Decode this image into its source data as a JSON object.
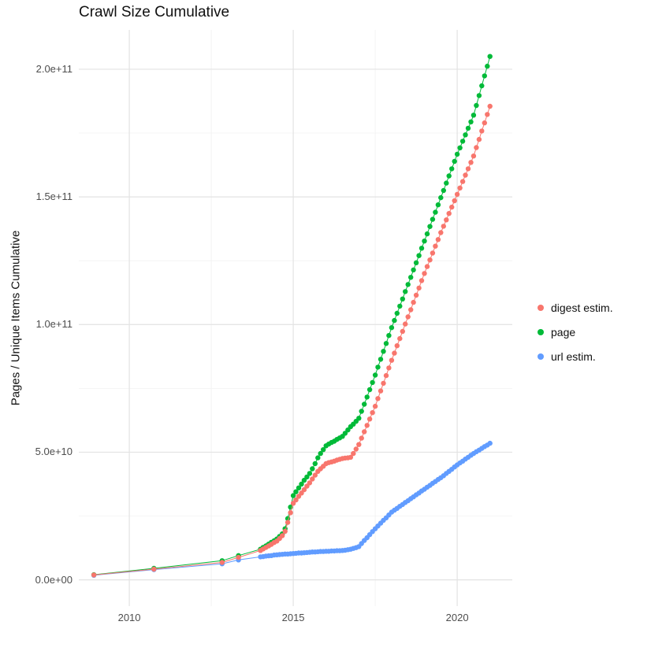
{
  "title": "Crawl Size Cumulative",
  "y_axis_label": "Pages / Unique Items Cumulative",
  "chart_data": {
    "type": "scatter",
    "mode": "points+lines",
    "title": "Crawl Size Cumulative",
    "xlabel": "",
    "ylabel": "Pages / Unique Items Cumulative",
    "y_unit_note": "y values stored in billions (1e9); axis shows scientific notation",
    "xlim": [
      2008.46,
      2021.68
    ],
    "ylim": [
      -10.3,
      215.4
    ],
    "grid": true,
    "legend_position": "right",
    "background_color": "#ffffff",
    "grid_major_color": "#e3e3e3",
    "grid_minor_color": "#f2f2f2",
    "x_ticks": [
      {
        "v": 2010,
        "label": "2010"
      },
      {
        "v": 2015,
        "label": "2015"
      },
      {
        "v": 2020,
        "label": "2020"
      }
    ],
    "x_minor_ticks": [
      2012.5,
      2017.5
    ],
    "y_ticks": [
      {
        "v": 0,
        "label": "0.0e+00"
      },
      {
        "v": 50,
        "label": "5.0e+10"
      },
      {
        "v": 100,
        "label": "1.0e+11"
      },
      {
        "v": 150,
        "label": "1.5e+11"
      },
      {
        "v": 200,
        "label": "2.0e+11"
      }
    ],
    "y_minor_ticks": [
      25,
      75,
      125,
      175
    ],
    "series": [
      {
        "name": "digest estim.",
        "color": "#F8766D",
        "points": [
          [
            2008.92,
            1.9
          ],
          [
            2010.75,
            4.2
          ],
          [
            2012.83,
            6.8
          ],
          [
            2013.33,
            8.8
          ],
          [
            2014.0,
            11.5
          ],
          [
            2014.083,
            12.1
          ],
          [
            2014.167,
            12.7
          ],
          [
            2014.25,
            13.3
          ],
          [
            2014.333,
            13.9
          ],
          [
            2014.417,
            14.6
          ],
          [
            2014.5,
            15.2
          ],
          [
            2014.583,
            16.2
          ],
          [
            2014.667,
            17.3
          ],
          [
            2014.75,
            19.0
          ],
          [
            2014.833,
            22.5
          ],
          [
            2014.917,
            26.3
          ],
          [
            2015.0,
            30.0
          ],
          [
            2015.083,
            31.3
          ],
          [
            2015.167,
            32.7
          ],
          [
            2015.25,
            34.0
          ],
          [
            2015.333,
            35.3
          ],
          [
            2015.417,
            36.7
          ],
          [
            2015.5,
            38.0
          ],
          [
            2015.583,
            39.5
          ],
          [
            2015.667,
            41.0
          ],
          [
            2015.75,
            42.5
          ],
          [
            2015.833,
            43.5
          ],
          [
            2015.917,
            44.5
          ],
          [
            2016.0,
            45.5
          ],
          [
            2016.083,
            45.9
          ],
          [
            2016.167,
            46.2
          ],
          [
            2016.25,
            46.5
          ],
          [
            2016.333,
            46.9
          ],
          [
            2016.417,
            47.2
          ],
          [
            2016.5,
            47.5
          ],
          [
            2016.583,
            47.7
          ],
          [
            2016.667,
            47.8
          ],
          [
            2016.75,
            48.0
          ],
          [
            2016.833,
            49.5
          ],
          [
            2016.917,
            51.2
          ],
          [
            2017.0,
            53.0
          ],
          [
            2017.083,
            55.5
          ],
          [
            2017.167,
            58.0
          ],
          [
            2017.25,
            60.5
          ],
          [
            2017.333,
            63.0
          ],
          [
            2017.417,
            65.5
          ],
          [
            2017.5,
            68.0
          ],
          [
            2017.583,
            71.0
          ],
          [
            2017.667,
            74.0
          ],
          [
            2017.75,
            77.0
          ],
          [
            2017.833,
            80.0
          ],
          [
            2017.917,
            83.0
          ],
          [
            2018.0,
            86.0
          ],
          [
            2018.083,
            88.8
          ],
          [
            2018.167,
            91.7
          ],
          [
            2018.25,
            94.5
          ],
          [
            2018.333,
            97.3
          ],
          [
            2018.417,
            100.2
          ],
          [
            2018.5,
            103.0
          ],
          [
            2018.583,
            105.8
          ],
          [
            2018.667,
            108.7
          ],
          [
            2018.75,
            111.5
          ],
          [
            2018.833,
            114.3
          ],
          [
            2018.917,
            117.2
          ],
          [
            2019.0,
            120.0
          ],
          [
            2019.083,
            122.7
          ],
          [
            2019.167,
            125.3
          ],
          [
            2019.25,
            128.0
          ],
          [
            2019.333,
            130.7
          ],
          [
            2019.417,
            133.3
          ],
          [
            2019.5,
            136.0
          ],
          [
            2019.583,
            138.5
          ],
          [
            2019.667,
            141.0
          ],
          [
            2019.75,
            143.5
          ],
          [
            2019.833,
            146.0
          ],
          [
            2019.917,
            148.5
          ],
          [
            2020.0,
            151.0
          ],
          [
            2020.083,
            153.5
          ],
          [
            2020.167,
            156.0
          ],
          [
            2020.25,
            158.5
          ],
          [
            2020.333,
            161.0
          ],
          [
            2020.417,
            163.5
          ],
          [
            2020.5,
            166.0
          ],
          [
            2020.583,
            169.3
          ],
          [
            2020.667,
            172.5
          ],
          [
            2020.75,
            175.8
          ],
          [
            2020.833,
            179.0
          ],
          [
            2020.917,
            182.3
          ],
          [
            2021.0,
            185.5
          ]
        ]
      },
      {
        "name": "page",
        "color": "#00BA38",
        "points": [
          [
            2008.92,
            2.0
          ],
          [
            2010.75,
            4.5
          ],
          [
            2012.83,
            7.5
          ],
          [
            2013.33,
            9.5
          ],
          [
            2014.0,
            12.0
          ],
          [
            2014.083,
            12.7
          ],
          [
            2014.167,
            13.3
          ],
          [
            2014.25,
            14.0
          ],
          [
            2014.333,
            14.7
          ],
          [
            2014.417,
            15.3
          ],
          [
            2014.5,
            16.0
          ],
          [
            2014.583,
            17.0
          ],
          [
            2014.667,
            18.0
          ],
          [
            2014.75,
            20.0
          ],
          [
            2014.833,
            24.0
          ],
          [
            2014.917,
            28.5
          ],
          [
            2015.0,
            33.0
          ],
          [
            2015.083,
            34.5
          ],
          [
            2015.167,
            36.0
          ],
          [
            2015.25,
            37.5
          ],
          [
            2015.333,
            39.0
          ],
          [
            2015.417,
            40.3
          ],
          [
            2015.5,
            41.7
          ],
          [
            2015.583,
            43.5
          ],
          [
            2015.667,
            45.5
          ],
          [
            2015.75,
            47.8
          ],
          [
            2015.833,
            49.5
          ],
          [
            2015.917,
            51.0
          ],
          [
            2016.0,
            52.5
          ],
          [
            2016.083,
            53.2
          ],
          [
            2016.167,
            53.8
          ],
          [
            2016.25,
            54.3
          ],
          [
            2016.333,
            55.0
          ],
          [
            2016.417,
            55.6
          ],
          [
            2016.5,
            56.2
          ],
          [
            2016.583,
            57.4
          ],
          [
            2016.667,
            58.7
          ],
          [
            2016.75,
            60.0
          ],
          [
            2016.833,
            61.0
          ],
          [
            2016.917,
            62.1
          ],
          [
            2017.0,
            63.3
          ],
          [
            2017.083,
            66.0
          ],
          [
            2017.167,
            68.8
          ],
          [
            2017.25,
            71.6
          ],
          [
            2017.333,
            74.5
          ],
          [
            2017.417,
            77.3
          ],
          [
            2017.5,
            80.2
          ],
          [
            2017.583,
            83.3
          ],
          [
            2017.667,
            86.4
          ],
          [
            2017.75,
            89.5
          ],
          [
            2017.833,
            92.6
          ],
          [
            2017.917,
            95.7
          ],
          [
            2018.0,
            98.8
          ],
          [
            2018.083,
            101.6
          ],
          [
            2018.167,
            104.4
          ],
          [
            2018.25,
            107.2
          ],
          [
            2018.333,
            110.0
          ],
          [
            2018.417,
            112.9
          ],
          [
            2018.5,
            115.7
          ],
          [
            2018.583,
            118.5
          ],
          [
            2018.667,
            121.4
          ],
          [
            2018.75,
            124.2
          ],
          [
            2018.833,
            127.0
          ],
          [
            2018.917,
            129.9
          ],
          [
            2019.0,
            132.7
          ],
          [
            2019.083,
            135.5
          ],
          [
            2019.167,
            138.4
          ],
          [
            2019.25,
            141.2
          ],
          [
            2019.333,
            144.0
          ],
          [
            2019.417,
            146.9
          ],
          [
            2019.5,
            149.7
          ],
          [
            2019.583,
            152.5
          ],
          [
            2019.667,
            155.4
          ],
          [
            2019.75,
            158.2
          ],
          [
            2019.833,
            161.0
          ],
          [
            2019.917,
            163.9
          ],
          [
            2020.0,
            166.7
          ],
          [
            2020.083,
            169.2
          ],
          [
            2020.167,
            171.8
          ],
          [
            2020.25,
            174.3
          ],
          [
            2020.333,
            176.9
          ],
          [
            2020.417,
            179.4
          ],
          [
            2020.5,
            182.0
          ],
          [
            2020.583,
            185.8
          ],
          [
            2020.667,
            189.7
          ],
          [
            2020.75,
            193.5
          ],
          [
            2020.833,
            197.4
          ],
          [
            2020.917,
            201.2
          ],
          [
            2021.0,
            205.0
          ]
        ]
      },
      {
        "name": "url estim.",
        "color": "#619CFF",
        "points": [
          [
            2008.92,
            1.8
          ],
          [
            2010.75,
            4.0
          ],
          [
            2012.83,
            6.3
          ],
          [
            2013.33,
            7.8
          ],
          [
            2014.0,
            9.0
          ],
          [
            2014.083,
            9.1
          ],
          [
            2014.167,
            9.3
          ],
          [
            2014.25,
            9.4
          ],
          [
            2014.333,
            9.5
          ],
          [
            2014.417,
            9.7
          ],
          [
            2014.5,
            9.8
          ],
          [
            2014.583,
            9.9
          ],
          [
            2014.667,
            10.0
          ],
          [
            2014.75,
            10.1
          ],
          [
            2014.833,
            10.1
          ],
          [
            2014.917,
            10.2
          ],
          [
            2015.0,
            10.3
          ],
          [
            2015.083,
            10.4
          ],
          [
            2015.167,
            10.5
          ],
          [
            2015.25,
            10.5
          ],
          [
            2015.333,
            10.6
          ],
          [
            2015.417,
            10.7
          ],
          [
            2015.5,
            10.8
          ],
          [
            2015.583,
            10.9
          ],
          [
            2015.667,
            10.9
          ],
          [
            2015.75,
            11.0
          ],
          [
            2015.833,
            11.1
          ],
          [
            2015.917,
            11.1
          ],
          [
            2016.0,
            11.2
          ],
          [
            2016.083,
            11.2
          ],
          [
            2016.167,
            11.3
          ],
          [
            2016.25,
            11.3
          ],
          [
            2016.333,
            11.4
          ],
          [
            2016.417,
            11.4
          ],
          [
            2016.5,
            11.5
          ],
          [
            2016.583,
            11.6
          ],
          [
            2016.667,
            11.8
          ],
          [
            2016.75,
            12.0
          ],
          [
            2016.833,
            12.3
          ],
          [
            2016.917,
            12.6
          ],
          [
            2017.0,
            13.0
          ],
          [
            2017.083,
            14.2
          ],
          [
            2017.167,
            15.4
          ],
          [
            2017.25,
            16.5
          ],
          [
            2017.333,
            17.7
          ],
          [
            2017.417,
            18.9
          ],
          [
            2017.5,
            20.0
          ],
          [
            2017.583,
            21.1
          ],
          [
            2017.667,
            22.2
          ],
          [
            2017.75,
            23.3
          ],
          [
            2017.833,
            24.3
          ],
          [
            2017.917,
            25.4
          ],
          [
            2018.0,
            26.5
          ],
          [
            2018.083,
            27.3
          ],
          [
            2018.167,
            28.0
          ],
          [
            2018.25,
            28.8
          ],
          [
            2018.333,
            29.5
          ],
          [
            2018.417,
            30.3
          ],
          [
            2018.5,
            31.0
          ],
          [
            2018.583,
            31.8
          ],
          [
            2018.667,
            32.5
          ],
          [
            2018.75,
            33.3
          ],
          [
            2018.833,
            34.0
          ],
          [
            2018.917,
            34.8
          ],
          [
            2019.0,
            35.5
          ],
          [
            2019.083,
            36.3
          ],
          [
            2019.167,
            37.0
          ],
          [
            2019.25,
            37.8
          ],
          [
            2019.333,
            38.5
          ],
          [
            2019.417,
            39.3
          ],
          [
            2019.5,
            40.0
          ],
          [
            2019.583,
            40.8
          ],
          [
            2019.667,
            41.7
          ],
          [
            2019.75,
            42.5
          ],
          [
            2019.833,
            43.3
          ],
          [
            2019.917,
            44.2
          ],
          [
            2020.0,
            45.0
          ],
          [
            2020.083,
            45.8
          ],
          [
            2020.167,
            46.5
          ],
          [
            2020.25,
            47.3
          ],
          [
            2020.333,
            48.0
          ],
          [
            2020.417,
            48.8
          ],
          [
            2020.5,
            49.5
          ],
          [
            2020.583,
            50.2
          ],
          [
            2020.667,
            50.8
          ],
          [
            2020.75,
            51.5
          ],
          [
            2020.833,
            52.2
          ],
          [
            2020.917,
            52.8
          ],
          [
            2021.0,
            53.5
          ]
        ]
      }
    ]
  }
}
